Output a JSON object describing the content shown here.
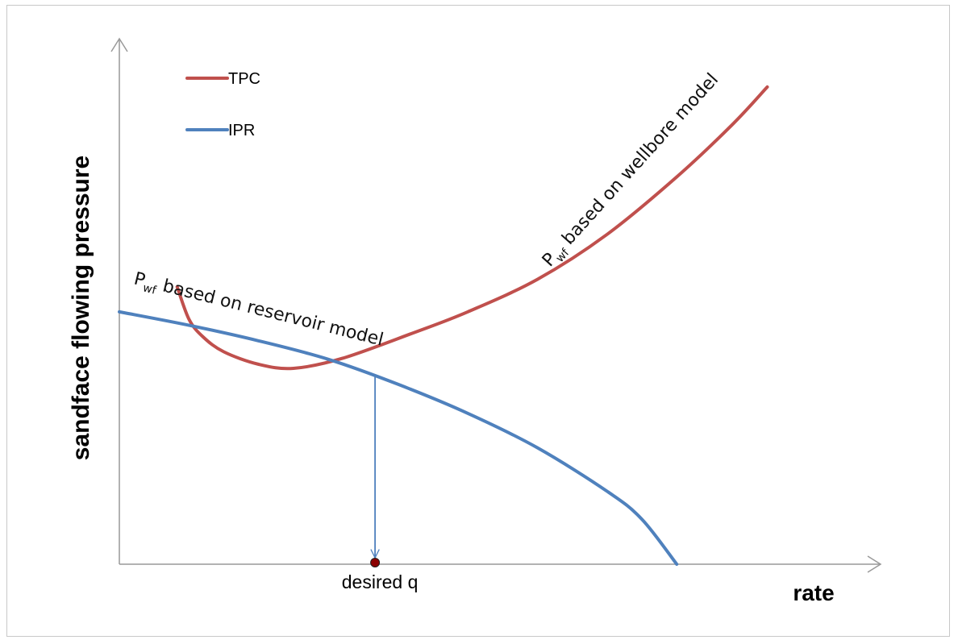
{
  "chart_data": {
    "type": "line",
    "xlabel": "rate",
    "ylabel": "sandface flowing pressure",
    "legend": {
      "placement": "top-left",
      "entries": [
        "TPC",
        "IPR"
      ]
    },
    "grid": false,
    "ticks": "none",
    "colors": {
      "TPC": "#c0504d",
      "IPR": "#4f81bd",
      "arrow": "#4f81bd",
      "marker": "#8b0000",
      "axis": "#999999"
    },
    "series": [
      {
        "name": "TPC",
        "points": [
          [
            0.083,
            0.555
          ],
          [
            0.1,
            0.49
          ],
          [
            0.12,
            0.455
          ],
          [
            0.15,
            0.425
          ],
          [
            0.2,
            0.4
          ],
          [
            0.25,
            0.392
          ],
          [
            0.32,
            0.412
          ],
          [
            0.42,
            0.462
          ],
          [
            0.5,
            0.505
          ],
          [
            0.6,
            0.57
          ],
          [
            0.7,
            0.66
          ],
          [
            0.8,
            0.775
          ],
          [
            0.88,
            0.88
          ],
          [
            0.93,
            0.955
          ]
        ]
      },
      {
        "name": "IPR",
        "points": [
          [
            0.0,
            0.505
          ],
          [
            0.1,
            0.478
          ],
          [
            0.2,
            0.447
          ],
          [
            0.3,
            0.41
          ],
          [
            0.4,
            0.36
          ],
          [
            0.5,
            0.302
          ],
          [
            0.6,
            0.233
          ],
          [
            0.7,
            0.146
          ],
          [
            0.75,
            0.09
          ],
          [
            0.8,
            0.0
          ]
        ]
      }
    ],
    "annotations": {
      "reservoir_note": {
        "prefix": "P",
        "subscript": "wf",
        "text": " based on reservoir model"
      },
      "wellbore_note": {
        "prefix": "P",
        "subscript": "wf",
        "text": " based on wellbore model"
      },
      "operating_point_label": "desired q",
      "operating_point": [
        0.367,
        0.375
      ]
    }
  }
}
